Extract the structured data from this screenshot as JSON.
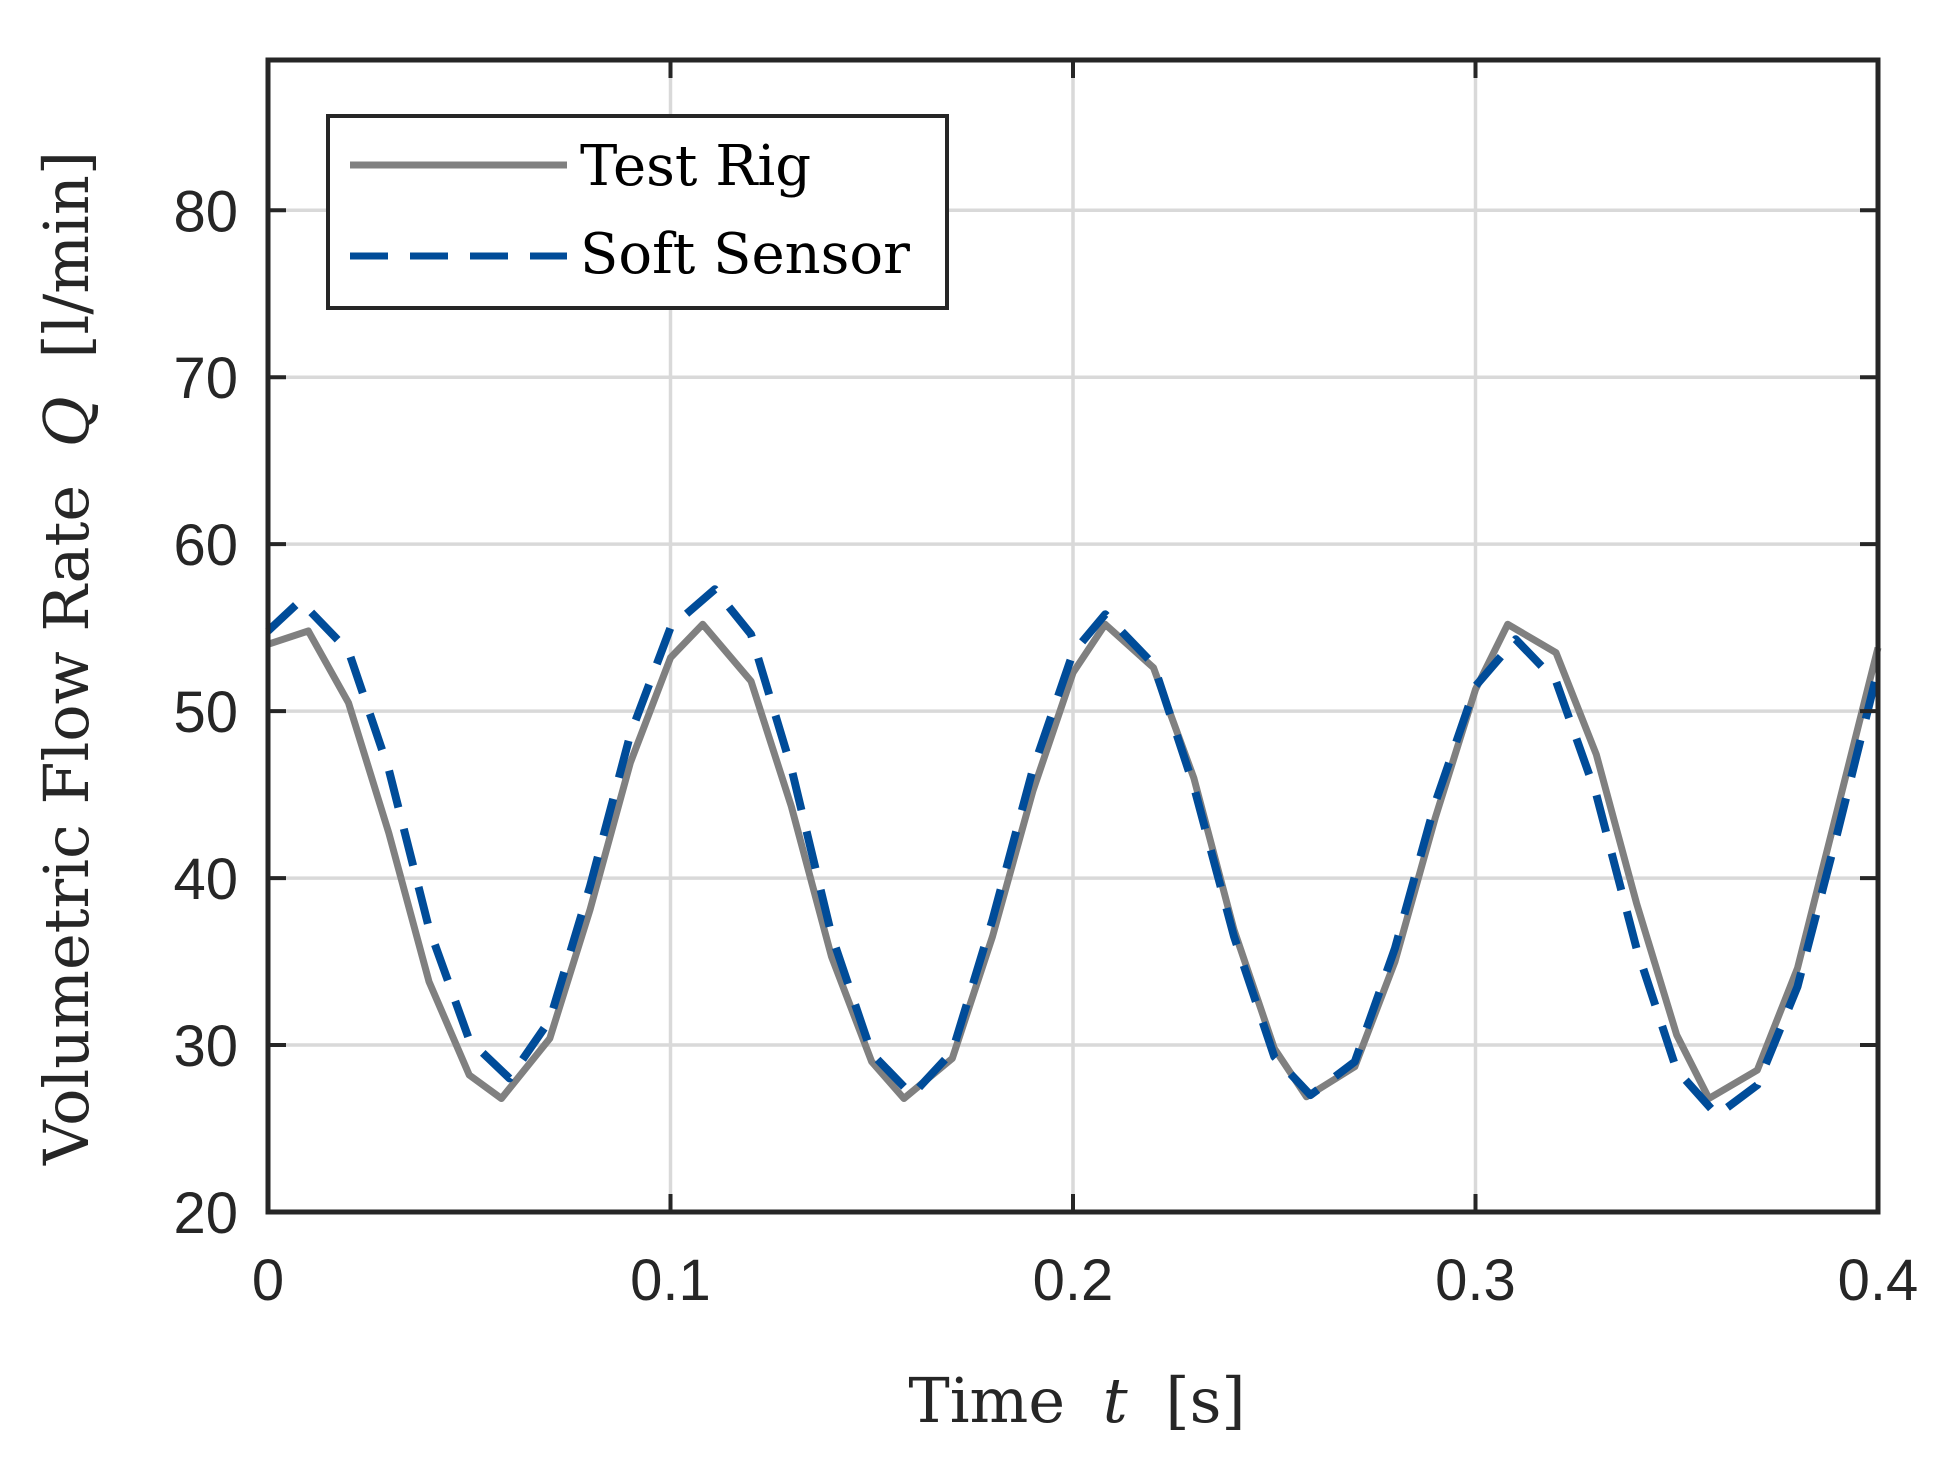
{
  "chart_data": {
    "type": "line",
    "title": "",
    "xlabel": "Time",
    "xlabel_symbol": "t",
    "xlabel_unit": "[s]",
    "ylabel": "Volumetric Flow Rate",
    "ylabel_symbol": "Q",
    "ylabel_unit": "[l/min]",
    "xlim": [
      0,
      0.4
    ],
    "ylim": [
      20,
      89
    ],
    "xticks": [
      0,
      0.1,
      0.2,
      0.3,
      0.4
    ],
    "xtick_labels": [
      "0",
      "0.1",
      "0.2",
      "0.3",
      "0.4"
    ],
    "yticks": [
      20,
      30,
      40,
      50,
      60,
      70,
      80
    ],
    "ytick_labels": [
      "20",
      "30",
      "40",
      "50",
      "60",
      "70",
      "80"
    ],
    "grid": true,
    "legend_position": "top-left",
    "series": [
      {
        "name": "Test Rig",
        "color": "#808080",
        "style": "solid",
        "x": [
          0,
          0.01,
          0.02,
          0.03,
          0.04,
          0.05,
          0.058,
          0.07,
          0.08,
          0.09,
          0.1,
          0.108,
          0.12,
          0.13,
          0.14,
          0.15,
          0.158,
          0.17,
          0.18,
          0.19,
          0.2,
          0.208,
          0.22,
          0.23,
          0.24,
          0.25,
          0.258,
          0.27,
          0.28,
          0.29,
          0.3,
          0.308,
          0.32,
          0.33,
          0.34,
          0.35,
          0.358,
          0.37,
          0.38,
          0.39,
          0.4
        ],
        "values": [
          54.0,
          54.8,
          50.5,
          42.7,
          33.8,
          28.2,
          26.8,
          30.4,
          38.1,
          46.9,
          53.2,
          55.2,
          51.8,
          44.3,
          35.3,
          29.0,
          26.8,
          29.2,
          36.5,
          45.2,
          52.3,
          55.2,
          52.6,
          46.0,
          36.9,
          29.8,
          26.9,
          28.7,
          35.0,
          43.6,
          51.3,
          55.2,
          53.5,
          47.4,
          38.5,
          30.6,
          26.8,
          28.5,
          34.6,
          44.2,
          53.8
        ]
      },
      {
        "name": "Soft Sensor",
        "color": "#004c99",
        "style": "dashed",
        "x": [
          0,
          0.008,
          0.02,
          0.03,
          0.04,
          0.05,
          0.06,
          0.07,
          0.08,
          0.09,
          0.1,
          0.111,
          0.12,
          0.13,
          0.14,
          0.15,
          0.16,
          0.17,
          0.18,
          0.19,
          0.2,
          0.208,
          0.22,
          0.23,
          0.24,
          0.25,
          0.259,
          0.27,
          0.28,
          0.29,
          0.3,
          0.31,
          0.32,
          0.33,
          0.34,
          0.35,
          0.36,
          0.37,
          0.38,
          0.39,
          0.4
        ],
        "values": [
          54.8,
          56.6,
          53.6,
          46.5,
          37.0,
          30.3,
          28.0,
          31.5,
          39.5,
          48.6,
          55.0,
          57.3,
          54.6,
          46.6,
          36.6,
          29.5,
          27.0,
          29.6,
          37.5,
          46.5,
          53.5,
          55.8,
          52.8,
          45.5,
          36.5,
          29.3,
          27.0,
          29.0,
          35.8,
          44.5,
          51.5,
          54.3,
          51.8,
          45.0,
          35.8,
          28.5,
          25.8,
          27.6,
          33.5,
          42.8,
          52.5
        ]
      }
    ]
  }
}
